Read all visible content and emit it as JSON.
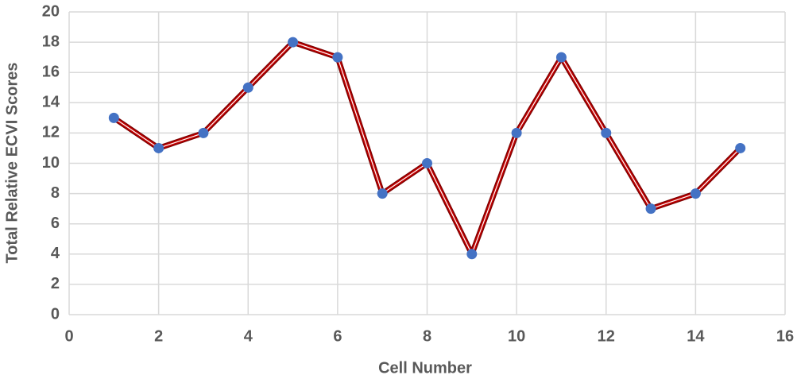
{
  "chart_data": {
    "type": "line",
    "x_label": "Cell Number",
    "y_label": "Total Relative ECVI Scores",
    "x": [
      1,
      2,
      3,
      4,
      5,
      6,
      7,
      8,
      9,
      10,
      11,
      12,
      13,
      14,
      15
    ],
    "series": [
      {
        "color": "#c00000",
        "marker_color": "#4472c4",
        "values": [
          13,
          11,
          12,
          15,
          18,
          17,
          8,
          10,
          4,
          12,
          17,
          12,
          7,
          8,
          11
        ]
      }
    ],
    "xlim": [
      0,
      16
    ],
    "xticks": [
      0,
      2,
      4,
      6,
      8,
      10,
      12,
      14,
      16
    ],
    "ylim": [
      0,
      20
    ],
    "yticks": [
      0,
      2,
      4,
      6,
      8,
      10,
      12,
      14,
      16,
      18,
      20
    ],
    "grid": true
  }
}
